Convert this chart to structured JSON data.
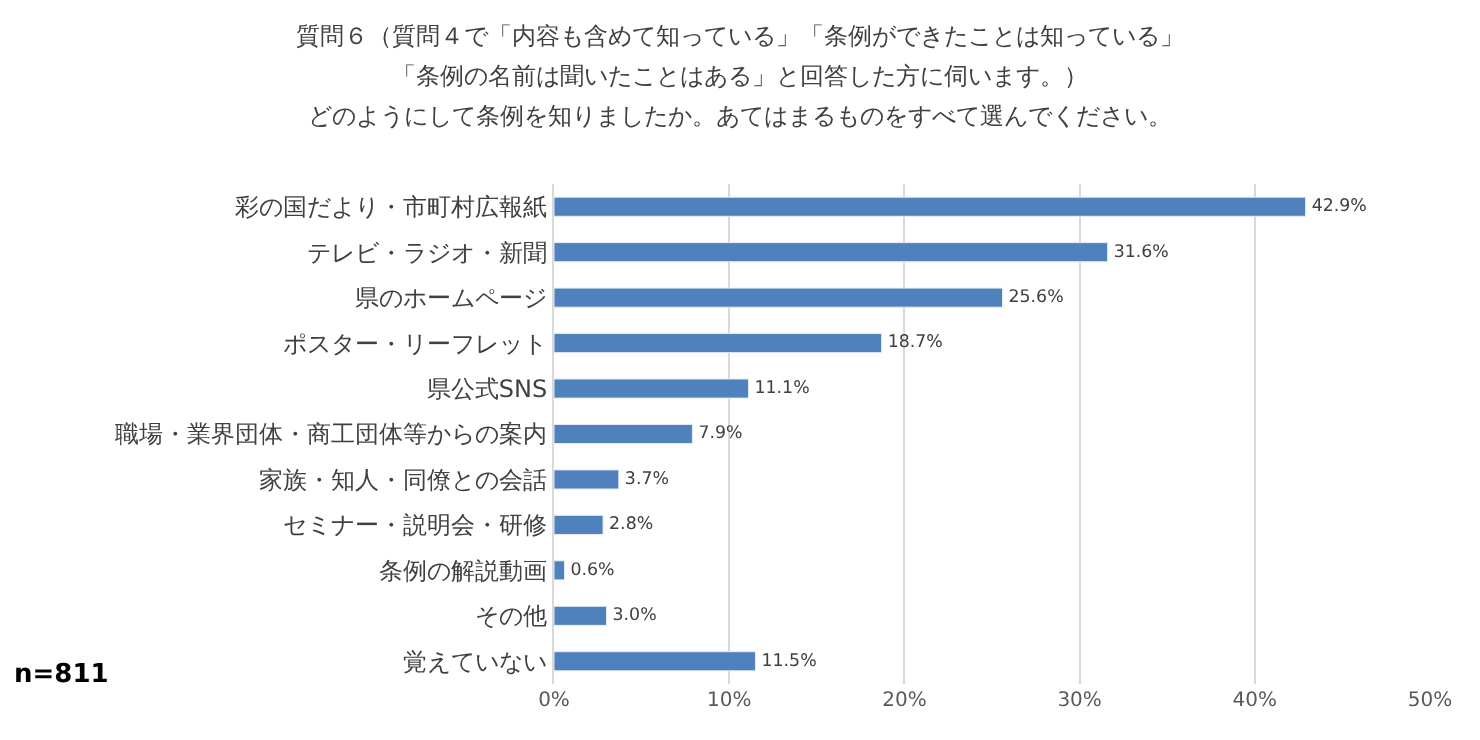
{
  "chart_data": {
    "type": "bar",
    "orientation": "horizontal",
    "title": "質問６（質問４で「内容も含めて知っている」「条例ができたことは知っている」",
    "subtitle": "「条例の名前は聞いたことはある」と回答した方に伺います。）",
    "categories": [
      "彩の国だより・市町村広報紙",
      "テレビ・ラジオ・新聞",
      "県のホームページ",
      "ポスター・リーフレット",
      "県公式SNS",
      "職場・業界団体・商工団体等からの案内",
      "家族・知人・同僚との会話",
      "セミナー・説明会・研修",
      "条例の解説動画",
      "その他",
      "覚えていない"
    ],
    "values": [
      42.9,
      31.6,
      25.6,
      18.7,
      11.1,
      7.9,
      3.7,
      2.8,
      0.6,
      3.0,
      11.5
    ],
    "value_labels": [
      "42.9%",
      "31.6%",
      "25.6%",
      "18.7%",
      "11.1%",
      "7.9%",
      "3.7%",
      "2.8%",
      "0.6%",
      "3.0%",
      "11.5%"
    ],
    "color": "#4f81bd",
    "xlim": [
      0,
      50
    ],
    "xticks": [
      {
        "value": 0,
        "label": "0%"
      },
      {
        "value": 10,
        "label": "10%"
      },
      {
        "value": 20,
        "label": "20%"
      },
      {
        "value": 30,
        "label": "30%"
      },
      {
        "value": 40,
        "label": "40%"
      },
      {
        "value": 50,
        "label": "50%"
      }
    ],
    "grid": "x",
    "legend": false,
    "annotations": [
      "どのようにして条例を知りましたか。あてはまるものをすべて選んでください。",
      "n=811"
    ]
  }
}
